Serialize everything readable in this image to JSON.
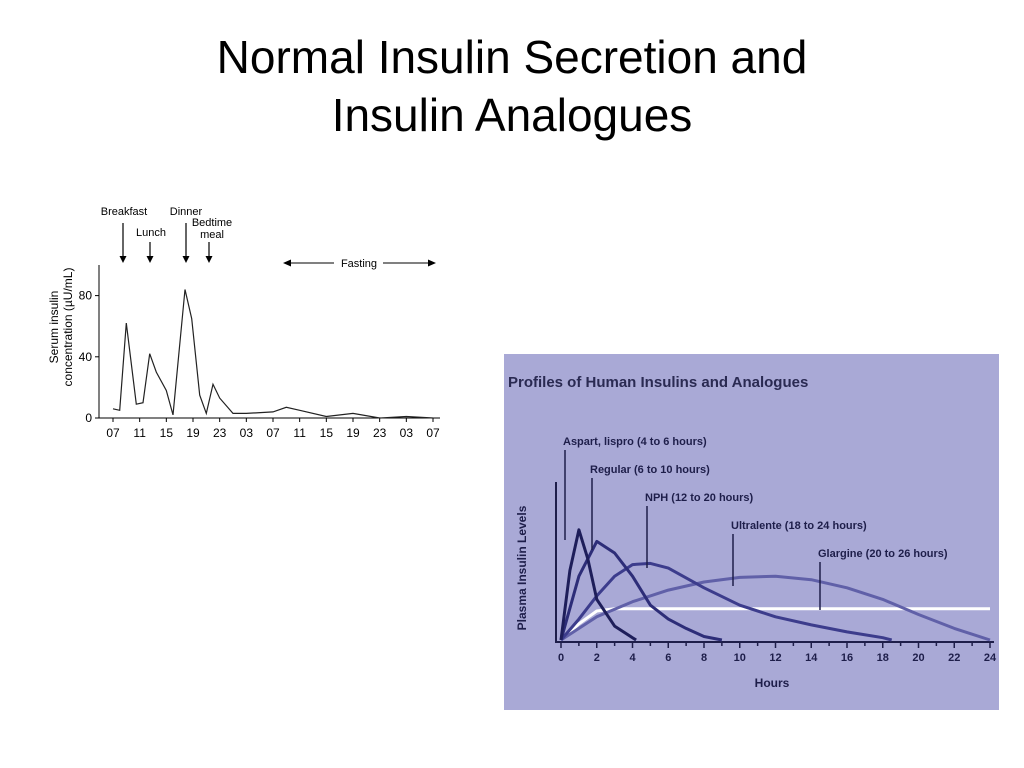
{
  "slide": {
    "title_line1": "Normal Insulin Secretion and",
    "title_line2": "Insulin Analogues"
  },
  "chart_data": [
    {
      "type": "line",
      "title": "",
      "ylabel_line1": "Serum insulin",
      "ylabel_line2": "concentration (µU/mL)",
      "xlabel": "",
      "categories": [
        "07",
        "11",
        "15",
        "19",
        "23",
        "03",
        "07",
        "11",
        "15",
        "19",
        "23",
        "03",
        "07"
      ],
      "x_hours": [
        0,
        4,
        8,
        12,
        16,
        20,
        24,
        28,
        32,
        36,
        40,
        44,
        48
      ],
      "ylim": [
        0,
        100
      ],
      "yticks": [
        0,
        40,
        80
      ],
      "series": [
        {
          "x": [
            0,
            1,
            2,
            3.5,
            4.5,
            5.5,
            6.5,
            8,
            9,
            10.8,
            11.8,
            13,
            14,
            15,
            16,
            18,
            20,
            24,
            26,
            28,
            32,
            36,
            40,
            44,
            48
          ],
          "y": [
            6,
            5,
            62,
            9,
            10,
            42,
            30,
            18,
            2,
            84,
            65,
            15,
            3,
            22,
            13,
            3,
            3,
            4,
            7,
            5,
            1,
            3,
            0,
            1,
            0
          ]
        }
      ],
      "annotations": {
        "breakfast": "Breakfast",
        "lunch": "Lunch",
        "dinner": "Dinner",
        "bedtime_line1": "Bedtime",
        "bedtime_line2": "meal",
        "fasting": "Fasting"
      },
      "grid": false
    },
    {
      "type": "line",
      "title": "Profiles of Human Insulins and Analogues",
      "xlabel": "Hours",
      "ylabel": "Plasma Insulin Levels",
      "xticks": [
        0,
        2,
        4,
        6,
        8,
        10,
        12,
        14,
        16,
        18,
        20,
        22,
        24
      ],
      "xlim": [
        0,
        24
      ],
      "ylim": [
        0,
        1
      ],
      "background": "#a9a9d6",
      "grid": false,
      "series": [
        {
          "name": "Aspart, lispro (4 to 6 hours)",
          "color": "#1e1e5a",
          "x": [
            0,
            0.5,
            1,
            1.5,
            2,
            3,
            4,
            4.2
          ],
          "y": [
            0,
            0.6,
            0.95,
            0.7,
            0.35,
            0.12,
            0.02,
            0
          ]
        },
        {
          "name": "Regular (6 to 10 hours)",
          "color": "#2d2d78",
          "x": [
            0,
            1,
            2,
            3,
            4,
            5,
            6,
            7,
            8,
            9
          ],
          "y": [
            0,
            0.55,
            0.85,
            0.75,
            0.55,
            0.3,
            0.18,
            0.1,
            0.03,
            0
          ]
        },
        {
          "name": "NPH (12 to 20 hours)",
          "color": "#3c3c8c",
          "x": [
            0,
            1,
            2,
            3,
            4,
            5,
            6,
            8,
            10,
            12,
            14,
            16,
            18,
            18.5
          ],
          "y": [
            0,
            0.18,
            0.38,
            0.55,
            0.65,
            0.66,
            0.62,
            0.45,
            0.3,
            0.2,
            0.13,
            0.07,
            0.02,
            0
          ]
        },
        {
          "name": "Ultralente (18 to 24 hours)",
          "color": "#6060a8",
          "x": [
            0,
            2,
            4,
            6,
            8,
            10,
            12,
            14,
            16,
            18,
            20,
            22,
            24
          ],
          "y": [
            0,
            0.2,
            0.33,
            0.43,
            0.5,
            0.54,
            0.55,
            0.52,
            0.45,
            0.35,
            0.22,
            0.1,
            0
          ]
        },
        {
          "name": "Glargine (20 to 26 hours)",
          "color": "#ffffff",
          "x": [
            0,
            1,
            2,
            3,
            24
          ],
          "y": [
            0,
            0.14,
            0.25,
            0.27,
            0.27
          ]
        }
      ]
    }
  ]
}
